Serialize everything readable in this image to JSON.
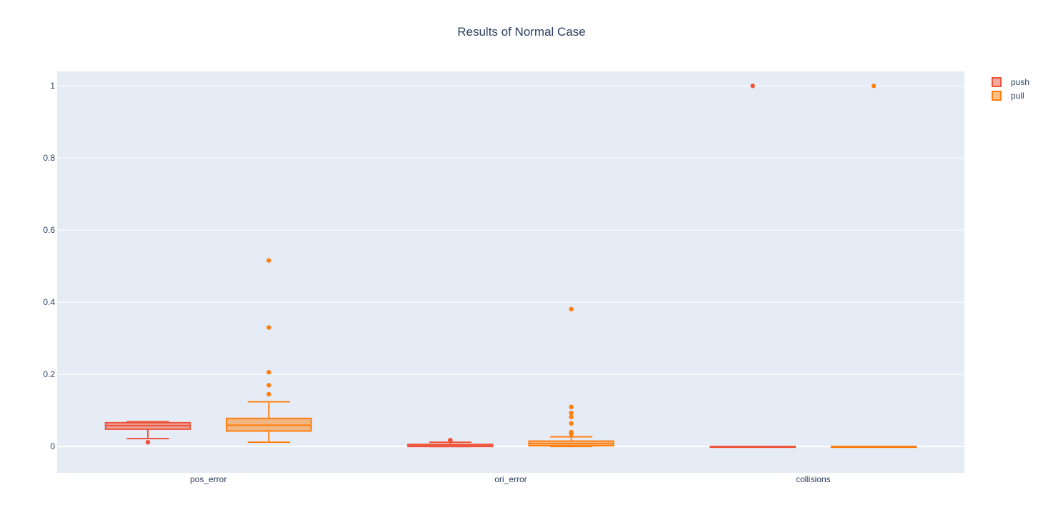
{
  "chart_data": {
    "type": "box",
    "title": "Results of Normal Case",
    "xlabel": "",
    "ylabel": "",
    "categories": [
      "pos_error",
      "ori_error",
      "collisions"
    ],
    "ylim": [
      -0.073,
      1.04
    ],
    "y_ticks": [
      0,
      0.2,
      0.4,
      0.6,
      0.8,
      1
    ],
    "y_tick_labels": [
      "0",
      "0.2",
      "0.4",
      "0.6",
      "0.8",
      "1"
    ],
    "grid": true,
    "legend_position": "top-right",
    "colors": {
      "plot_background": "#e5ecf6",
      "grid": "#ffffff",
      "text": "#2a3f5f"
    },
    "series": [
      {
        "name": "push",
        "color": "#ef553b",
        "boxes": [
          {
            "category": "pos_error",
            "lowerfence": 0.022,
            "q1": 0.048,
            "median": 0.058,
            "q3": 0.066,
            "upperfence": 0.069,
            "outliers": [
              0.012
            ]
          },
          {
            "category": "ori_error",
            "lowerfence": 0.0,
            "q1": 0.0,
            "median": 0.002,
            "q3": 0.006,
            "upperfence": 0.012,
            "outliers": [
              0.016,
              0.018
            ]
          },
          {
            "category": "collisions",
            "lowerfence": 0,
            "q1": 0,
            "median": 0,
            "q3": 0,
            "upperfence": 0,
            "outliers": [
              1
            ]
          }
        ]
      },
      {
        "name": "pull",
        "color": "#ff7f0e",
        "boxes": [
          {
            "category": "pos_error",
            "lowerfence": 0.012,
            "q1": 0.043,
            "median": 0.059,
            "q3": 0.078,
            "upperfence": 0.124,
            "outliers": [
              0.145,
              0.17,
              0.206,
              0.33,
              0.516
            ]
          },
          {
            "category": "ori_error",
            "lowerfence": 0.0,
            "q1": 0.002,
            "median": 0.008,
            "q3": 0.015,
            "upperfence": 0.027,
            "outliers": [
              0.035,
              0.04,
              0.064,
              0.082,
              0.093,
              0.11,
              0.381
            ]
          },
          {
            "category": "collisions",
            "lowerfence": 0,
            "q1": 0,
            "median": 0,
            "q3": 0,
            "upperfence": 0,
            "outliers": [
              1
            ]
          }
        ]
      }
    ]
  }
}
